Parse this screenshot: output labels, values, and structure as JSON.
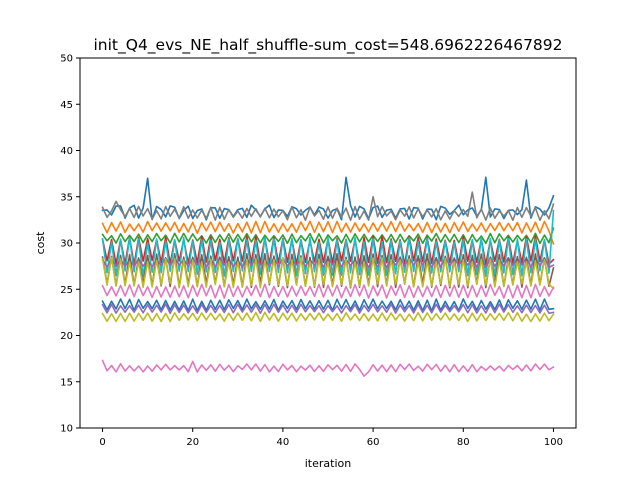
{
  "chart_data": {
    "type": "line",
    "title": "init_Q4_evs_NE_half_shuffle-sum_cost=548.6962226467892",
    "xlabel": "iteration",
    "ylabel": "cost",
    "xlim": [
      -5,
      105
    ],
    "ylim": [
      10,
      50
    ],
    "xticks": [
      0,
      20,
      40,
      60,
      80,
      100
    ],
    "yticks": [
      10,
      15,
      20,
      25,
      30,
      35,
      40,
      45,
      50
    ],
    "grid": false,
    "legend": "none",
    "series": [
      {
        "color": "#1f77b4",
        "base": 33.3,
        "amp": 0.5,
        "period": 3,
        "noise": 0.6,
        "seed": 3,
        "spikes": [
          [
            10,
            37.0
          ],
          [
            54,
            37.1
          ],
          [
            85,
            37.1
          ],
          [
            94,
            36.8
          ]
        ],
        "end": 35.1
      },
      {
        "color": "#7f7f7f",
        "base": 33.2,
        "amp": 0.5,
        "period": 2,
        "noise": 0.5,
        "seed": 7,
        "spikes": [
          [
            3,
            34.5
          ],
          [
            60,
            35.0
          ],
          [
            82,
            35.5
          ]
        ],
        "end": 34.2
      },
      {
        "color": "#ff7f0e",
        "base": 31.7,
        "amp": 0.5,
        "period": 2,
        "noise": 0.3,
        "seed": 11,
        "spikes": [],
        "end": 29.9
      },
      {
        "color": "#2ca02c",
        "base": 30.5,
        "amp": 0.4,
        "period": 2,
        "noise": 0.3,
        "seed": 13,
        "spikes": [],
        "end": 31.6
      },
      {
        "color": "#d62728",
        "base": 29.2,
        "amp": 1.3,
        "period": 2,
        "noise": 0.5,
        "seed": 17,
        "spikes": [],
        "end": 28.2
      },
      {
        "color": "#17becf",
        "base": 28.5,
        "amp": 1.8,
        "period": 2,
        "noise": 0.6,
        "seed": 19,
        "spikes": [],
        "end": 33.5
      },
      {
        "color": "#9467bd",
        "base": 27.9,
        "amp": 0.4,
        "period": 2,
        "noise": 0.3,
        "seed": 23,
        "spikes": [],
        "end": 27.6
      },
      {
        "color": "#8c564b",
        "base": 27.0,
        "amp": 1.6,
        "period": 2,
        "noise": 0.5,
        "seed": 29,
        "spikes": [],
        "end": 27.3
      },
      {
        "color": "#bcbd22",
        "base": 26.8,
        "amp": 1.4,
        "period": 2,
        "noise": 0.5,
        "seed": 31,
        "spikes": [],
        "end": 25.1
      },
      {
        "color": "#e377c2",
        "base": 24.8,
        "amp": 0.6,
        "period": 2,
        "noise": 0.3,
        "seed": 37,
        "spikes": [],
        "end": 25.2
      },
      {
        "color": "#1f77b4",
        "base": 23.3,
        "amp": 0.5,
        "period": 2,
        "noise": 0.3,
        "seed": 41,
        "spikes": [],
        "end": 22.9
      },
      {
        "color": "#9467bd",
        "base": 22.9,
        "amp": 0.4,
        "period": 2,
        "noise": 0.2,
        "seed": 43,
        "spikes": [],
        "end": 22.5
      },
      {
        "color": "#bcbd22",
        "base": 22.0,
        "amp": 0.4,
        "period": 2,
        "noise": 0.2,
        "seed": 47,
        "spikes": [],
        "end": 22.3
      },
      {
        "color": "#e377c2",
        "base": 16.5,
        "amp": 0.3,
        "period": 2,
        "noise": 0.3,
        "seed": 53,
        "spikes": [
          [
            0,
            17.3
          ],
          [
            20,
            17.2
          ],
          [
            58,
            15.6
          ]
        ],
        "end": 16.6
      }
    ]
  }
}
